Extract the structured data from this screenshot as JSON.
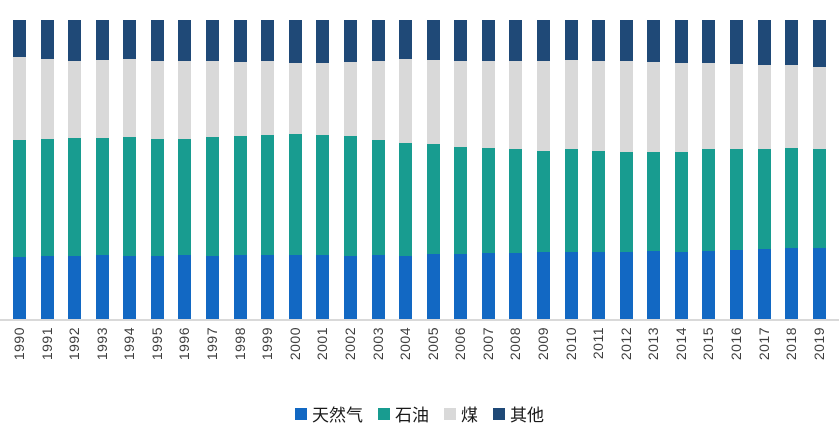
{
  "chart_data": {
    "type": "bar",
    "variant": "stacked-percent",
    "title": "",
    "xlabel": "",
    "ylabel": "",
    "ylim": [
      0,
      100
    ],
    "grid": false,
    "legend_position": "bottom",
    "x": [
      "1990",
      "1991",
      "1992",
      "1993",
      "1994",
      "1995",
      "1996",
      "1997",
      "1998",
      "1999",
      "2000",
      "2001",
      "2002",
      "2003",
      "2004",
      "2005",
      "2006",
      "2007",
      "2008",
      "2009",
      "2010",
      "2011",
      "2012",
      "2013",
      "2014",
      "2015",
      "2016",
      "2017",
      "2018",
      "2019"
    ],
    "series": [
      {
        "name": "天然气",
        "color": "#1268C3",
        "values": [
          20.7,
          21.0,
          21.0,
          21.3,
          21.0,
          21.0,
          21.3,
          21.0,
          21.3,
          21.3,
          21.3,
          21.3,
          21.0,
          21.3,
          21.0,
          21.7,
          21.7,
          22.0,
          22.0,
          22.3,
          22.3,
          22.3,
          22.3,
          22.7,
          22.3,
          22.7,
          23.0,
          23.3,
          23.7,
          23.7
        ]
      },
      {
        "name": "石油",
        "color": "#189C90",
        "values": [
          39.3,
          39.3,
          39.7,
          39.0,
          40.0,
          39.3,
          39.0,
          40.0,
          40.0,
          40.3,
          40.7,
          40.3,
          40.3,
          38.7,
          38.0,
          36.7,
          36.0,
          35.3,
          35.0,
          34.0,
          34.3,
          34.0,
          33.7,
          33.0,
          33.3,
          34.0,
          34.0,
          33.7,
          33.7,
          33.3
        ]
      },
      {
        "name": "煤",
        "color": "#D9D9D9",
        "values": [
          27.7,
          26.7,
          25.7,
          26.3,
          26.0,
          26.0,
          26.0,
          25.3,
          24.7,
          24.7,
          23.7,
          24.0,
          24.7,
          26.3,
          28.0,
          28.3,
          28.7,
          29.0,
          29.3,
          30.0,
          30.0,
          30.0,
          30.3,
          30.3,
          30.0,
          29.0,
          28.3,
          28.0,
          27.7,
          27.3
        ]
      },
      {
        "name": "其他",
        "color": "#1F4977",
        "values": [
          12.3,
          13.0,
          13.7,
          13.3,
          13.0,
          13.7,
          13.7,
          13.7,
          14.0,
          13.7,
          14.3,
          14.3,
          14.0,
          13.7,
          13.0,
          13.3,
          13.7,
          13.7,
          13.7,
          13.7,
          13.3,
          13.7,
          13.7,
          14.0,
          14.3,
          14.3,
          14.7,
          15.0,
          15.0,
          15.7
        ]
      }
    ],
    "axis": {
      "baseline_color": "#D9D9D9",
      "tick_label_color": "#3F3F3F"
    }
  }
}
